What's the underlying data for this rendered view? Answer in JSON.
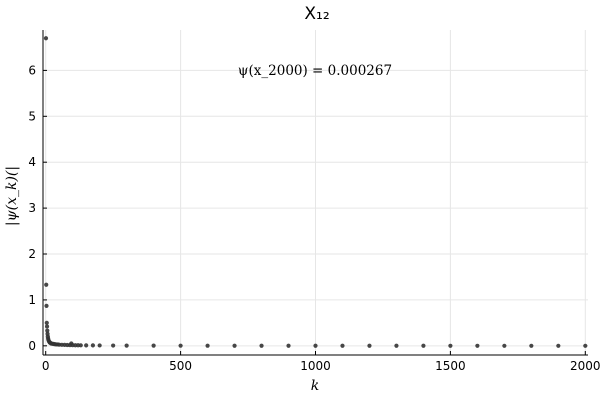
{
  "chart_data": {
    "type": "scatter",
    "title": "X₁₂",
    "xlabel": "k",
    "ylabel": "|ψ(x_k)(|",
    "annotation": "ψ(x_2000) = 0.000267",
    "xlim": [
      -10,
      2010
    ],
    "ylim": [
      -0.2,
      6.88
    ],
    "xticks": [
      0,
      500,
      1000,
      1500,
      2000
    ],
    "yticks": [
      0,
      1,
      2,
      3,
      4,
      5,
      6
    ],
    "grid": true,
    "legend": "none",
    "marker_color": "#333333",
    "series": [
      {
        "x": [
          1,
          2,
          3,
          4,
          5,
          6,
          7,
          8,
          9,
          10,
          12,
          14,
          16,
          18,
          20,
          25,
          30,
          35,
          40,
          45,
          50,
          60,
          70,
          80,
          90,
          95,
          100,
          110,
          120,
          130,
          150,
          175,
          200,
          250,
          300,
          400,
          500,
          600,
          700,
          800,
          900,
          1000,
          1100,
          1200,
          1300,
          1400,
          1500,
          1600,
          1700,
          1800,
          1900,
          2000
        ],
        "y": [
          6.7,
          1.33,
          0.87,
          0.5,
          0.42,
          0.33,
          0.26,
          0.2,
          0.16,
          0.13,
          0.1,
          0.08,
          0.07,
          0.06,
          0.05,
          0.045,
          0.04,
          0.035,
          0.03,
          0.03,
          0.025,
          0.022,
          0.02,
          0.018,
          0.016,
          0.05,
          0.015,
          0.013,
          0.012,
          0.011,
          0.01,
          0.009,
          0.008,
          0.006,
          0.005,
          0.004,
          0.003,
          0.0025,
          0.002,
          0.0018,
          0.0015,
          0.0012,
          0.001,
          0.0009,
          0.0008,
          0.0007,
          0.0006,
          0.0005,
          0.0004,
          0.00035,
          0.0003,
          0.000267
        ]
      }
    ]
  }
}
